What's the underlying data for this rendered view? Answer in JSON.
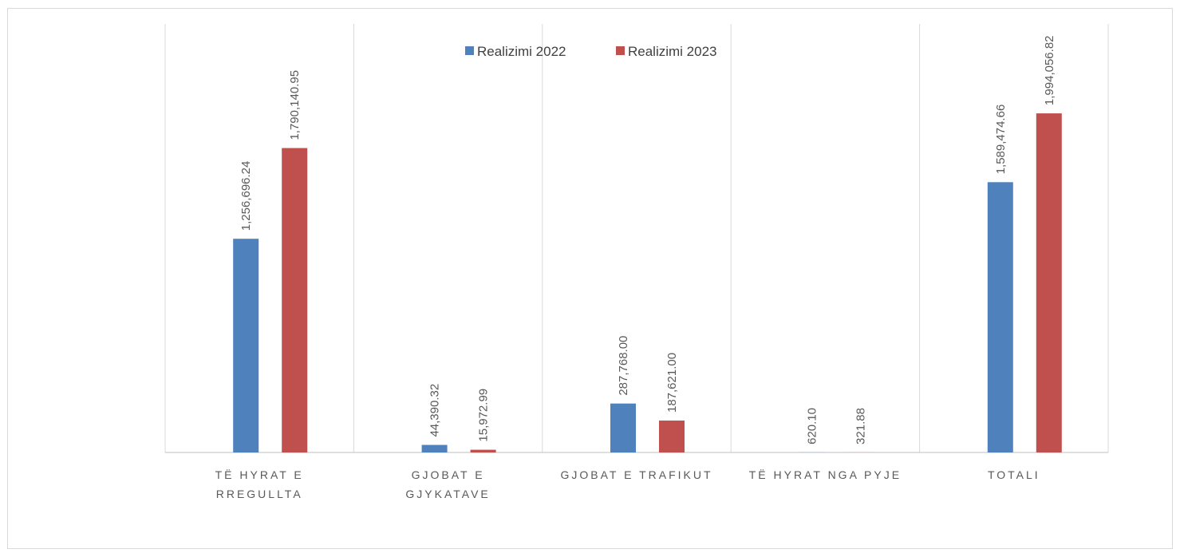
{
  "chart_data": {
    "type": "bar",
    "categories": [
      [
        "TË HYRAT E",
        "RREGULLTA"
      ],
      [
        "GJOBAT E",
        "GJYKATAVE"
      ],
      [
        "GJOBAT  E TRAFIKUT"
      ],
      [
        "TË HYRAT NGA PYJE"
      ],
      [
        "TOTALI"
      ]
    ],
    "series": [
      {
        "name": "Realizimi 2022",
        "color": "#4f81bd",
        "values": [
          1256696.24,
          44390.32,
          287768.0,
          620.1,
          1589474.66
        ],
        "labels": [
          "1,256,696.24",
          "44,390.32",
          "287,768.00",
          "620.10",
          "1,589,474.66"
        ]
      },
      {
        "name": "Realizimi 2023",
        "color": "#c0504d",
        "values": [
          1790140.95,
          15972.99,
          187621.0,
          321.88,
          1994056.82
        ],
        "labels": [
          "1,790,140.95",
          "15,972.99",
          "187,621.00",
          "321.88",
          "1,994,056.82"
        ]
      }
    ],
    "legend_position": "top-center",
    "grid": "vertical category separators",
    "ylim": [
      0,
      2520000
    ]
  }
}
